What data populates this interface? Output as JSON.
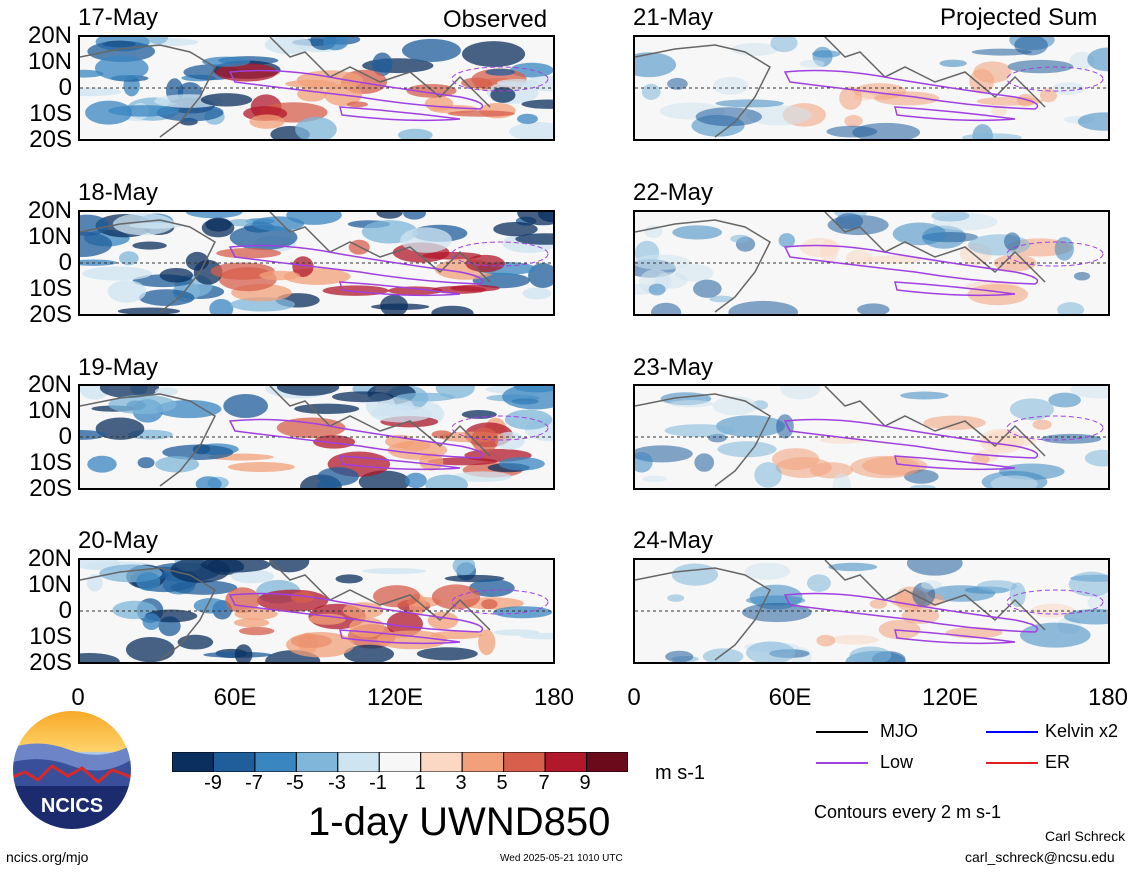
{
  "columns": {
    "left_title": "Observed",
    "right_title": "Projected Sum"
  },
  "panels": [
    {
      "date": "17-May",
      "column": "observed",
      "row": 0
    },
    {
      "date": "18-May",
      "column": "observed",
      "row": 1
    },
    {
      "date": "19-May",
      "column": "observed",
      "row": 2
    },
    {
      "date": "20-May",
      "column": "observed",
      "row": 3
    },
    {
      "date": "21-May",
      "column": "projected",
      "row": 0
    },
    {
      "date": "22-May",
      "column": "projected",
      "row": 1
    },
    {
      "date": "23-May",
      "column": "projected",
      "row": 2
    },
    {
      "date": "24-May",
      "column": "projected",
      "row": 3
    }
  ],
  "lat_labels": [
    "20N",
    "10N",
    "0",
    "10S",
    "20S"
  ],
  "lon_labels": [
    "0",
    "60E",
    "120E",
    "180"
  ],
  "colorbar": {
    "labels": [
      "-9",
      "-7",
      "-5",
      "-3",
      "-1",
      "1",
      "3",
      "5",
      "7",
      "9"
    ],
    "colors": [
      "#0b2f5e",
      "#1f5d9b",
      "#3a86c0",
      "#7fb6da",
      "#cfe4f1",
      "#f7f7f7",
      "#fbd8c4",
      "#f2a07a",
      "#d75f4c",
      "#b2182b",
      "#6b0a1a"
    ],
    "units": "m s-1",
    "title": "1-day UWND850"
  },
  "legend": {
    "items": [
      {
        "label": "MJO",
        "color": "#000000"
      },
      {
        "label": "Kelvin x2",
        "color": "#0000ff"
      },
      {
        "label": "Low",
        "color": "#a040e0"
      },
      {
        "label": "ER",
        "color": "#e02020"
      }
    ],
    "contour_note": "Contours every 2 m s-1"
  },
  "footer": {
    "site": "ncics.org/mjo",
    "timestamp": "Wed 2025-05-21 1010 UTC",
    "author": "Carl Schreck",
    "email": "carl_schreck@ncsu.edu"
  },
  "logo": {
    "text": "NCICS"
  }
}
